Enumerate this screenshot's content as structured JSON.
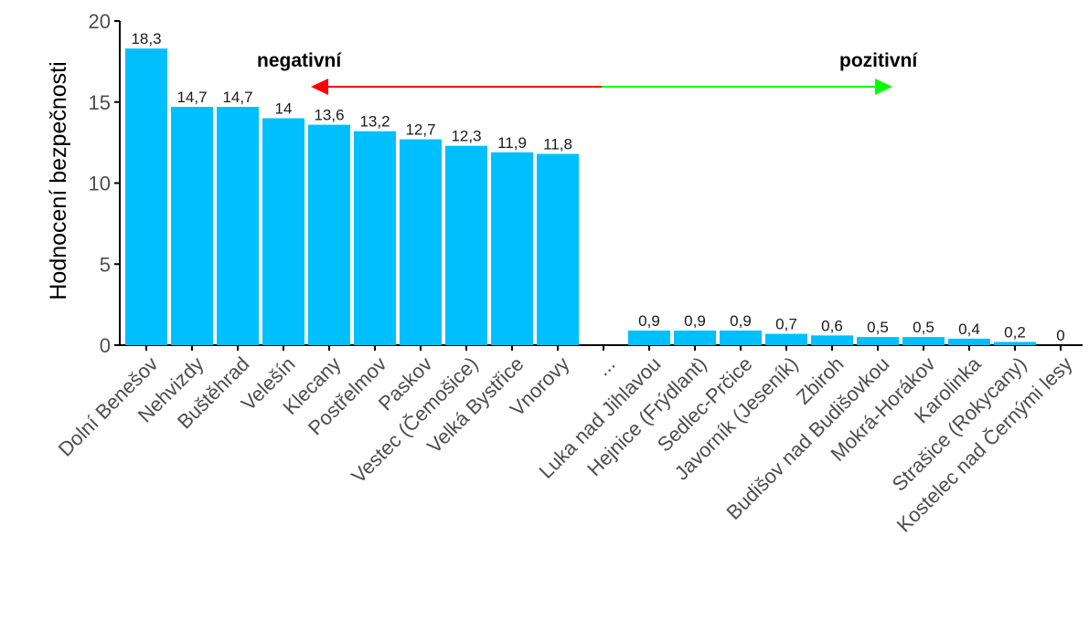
{
  "chart_data": {
    "type": "bar",
    "ylabel": "Hodnocení bezpečnosti",
    "xlabel": "",
    "ylim": [
      0,
      20
    ],
    "yticks": [
      "0",
      "5",
      "10",
      "15",
      "20"
    ],
    "grid": false,
    "bar_color": "#00bfff",
    "categories": [
      "Dolní Benešov",
      "Nehvizdy",
      "Buštěhrad",
      "Velešín",
      "Klecany",
      "Postřelmov",
      "Paskov",
      "Vestec (Čemošice)",
      "Velká Bystřice",
      "Vnorovy",
      "...",
      "Luka nad Jihlavou",
      "Hejnice (Frýdlant)",
      "Sedlec-Prčice",
      "Javorník (Jeseník)",
      "Zbiroh",
      "Budišov nad Budišovkou",
      "Mokrá-Horákov",
      "Karolinka",
      "Strašice (Rokycany)",
      "Kostelec nad Černými lesy"
    ],
    "values": [
      18.3,
      14.7,
      14.7,
      14,
      13.6,
      13.2,
      12.7,
      12.3,
      11.9,
      11.8,
      null,
      0.9,
      0.9,
      0.9,
      0.7,
      0.6,
      0.5,
      0.5,
      0.4,
      0.2,
      0
    ],
    "value_labels": [
      "18,3",
      "14,7",
      "14,7",
      "14",
      "13,6",
      "13,2",
      "12,7",
      "12,3",
      "11,9",
      "11,8",
      "",
      "0,9",
      "0,9",
      "0,9",
      "0,7",
      "0,6",
      "0,5",
      "0,5",
      "0,4",
      "0,2",
      "0"
    ],
    "annotations": {
      "negative_label": "negativní",
      "positive_label": "pozitivní",
      "negative_color": "#ff0000",
      "positive_color": "#00ff00"
    }
  }
}
